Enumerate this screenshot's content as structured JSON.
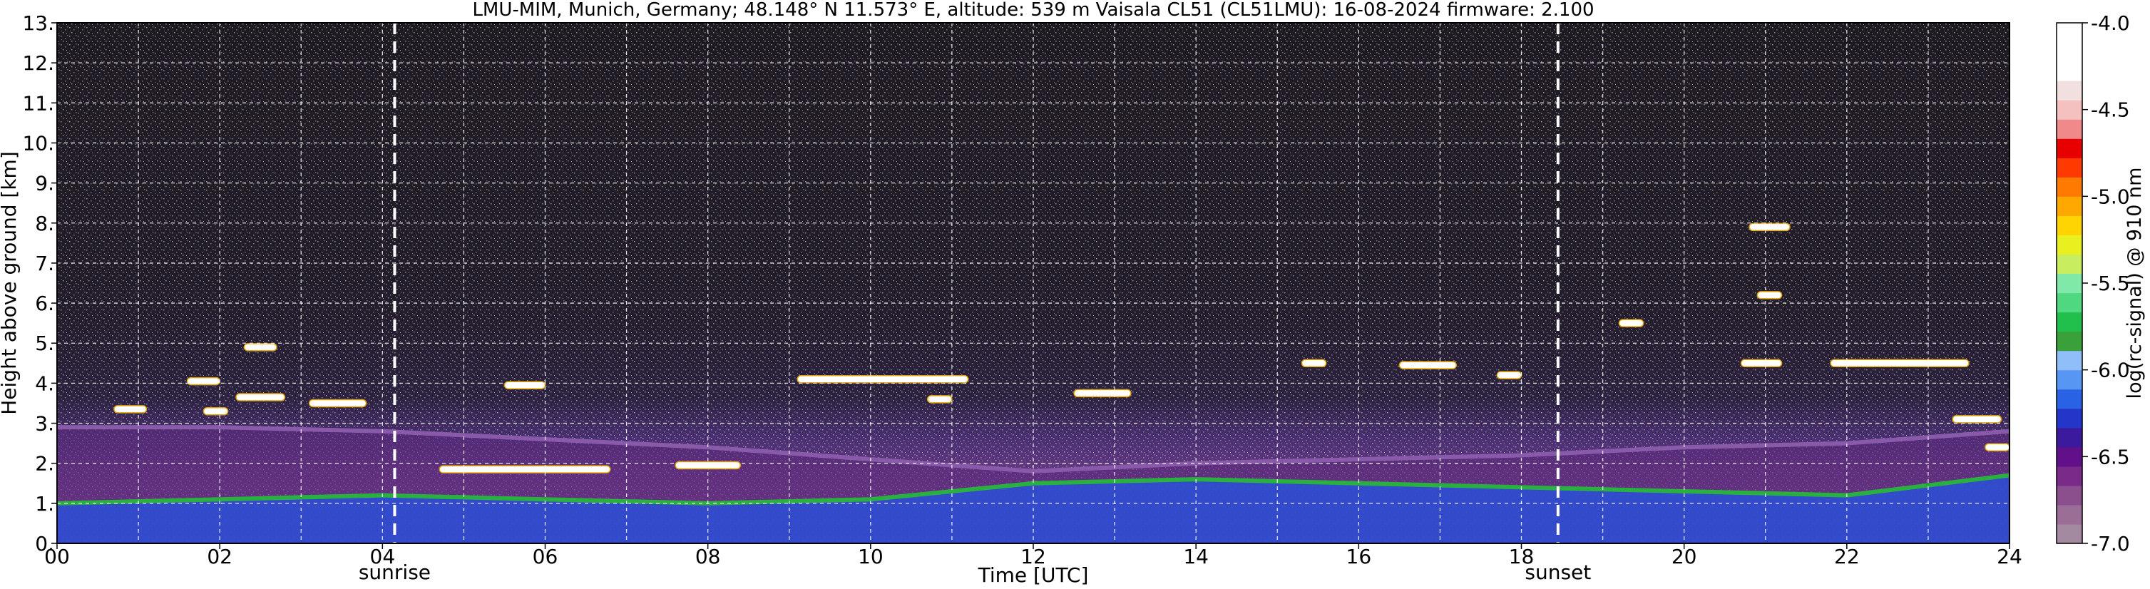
{
  "chart_data": {
    "type": "heatmap",
    "title": "LMU-MIM, Munich, Germany; 48.148° N 11.573° E, altitude: 539 m    Vaisala CL51 (CL51LMU): 16-08-2024    firmware: 2.100",
    "xlabel": "Time [UTC]",
    "ylabel": "Height above ground [km]",
    "xlim": [
      0,
      24
    ],
    "ylim": [
      0,
      13
    ],
    "xticks": [
      "00",
      "02",
      "04",
      "06",
      "08",
      "10",
      "12",
      "14",
      "16",
      "18",
      "20",
      "22",
      "24"
    ],
    "yticks": [
      "0.",
      "1.",
      "2.",
      "3.",
      "4.",
      "5.",
      "6.",
      "7.",
      "8.",
      "9.",
      "10.",
      "11.",
      "12.",
      "13."
    ],
    "grid": true,
    "markers": [
      {
        "label": "sunrise",
        "time": 4.15
      },
      {
        "label": "sunset",
        "time": 18.45
      }
    ],
    "colorbar": {
      "label": "log(rc-signal) @ 910 nm",
      "ticks": [
        "-4.0",
        "-4.5",
        "-5.0",
        "-5.5",
        "-6.0",
        "-6.5",
        "-7.0"
      ],
      "range": [
        -7.0,
        -4.0
      ],
      "colors": [
        "#a48aa0",
        "#9a6e96",
        "#8c4f8e",
        "#7a2a88",
        "#62108a",
        "#3c1a9e",
        "#2436c8",
        "#2a62e6",
        "#5896f4",
        "#90bef8",
        "#3aa03a",
        "#21c04c",
        "#50d880",
        "#80e8a8",
        "#c8ee60",
        "#e8f020",
        "#ffd400",
        "#ffa800",
        "#ff7a00",
        "#ff3a00",
        "#e80000",
        "#f08a8a",
        "#f4c0c0",
        "#f2e0e0",
        "#ffffff",
        "#ffffff",
        "#ffffff"
      ]
    },
    "features": [
      {
        "kind": "aerosol-layer-top",
        "time": [
          0,
          2,
          4,
          6,
          8,
          10,
          12,
          14,
          16,
          18,
          20,
          22,
          24
        ],
        "height_km": [
          2.9,
          2.9,
          2.8,
          2.6,
          2.4,
          2.1,
          1.8,
          2.0,
          2.1,
          2.2,
          2.4,
          2.5,
          2.8
        ]
      },
      {
        "kind": "boundary-layer-top",
        "time": [
          0,
          2,
          4,
          6,
          8,
          10,
          12,
          14,
          16,
          18,
          20,
          22,
          24
        ],
        "height_km": [
          1.0,
          1.1,
          1.2,
          1.1,
          1.0,
          1.1,
          1.5,
          1.6,
          1.5,
          1.4,
          1.3,
          1.2,
          1.7
        ]
      },
      {
        "kind": "cloud",
        "t_start": 0.7,
        "t_end": 1.1,
        "height_km": 3.35
      },
      {
        "kind": "cloud",
        "t_start": 1.8,
        "t_end": 2.1,
        "height_km": 3.3
      },
      {
        "kind": "cloud",
        "t_start": 2.2,
        "t_end": 2.8,
        "height_km": 3.65
      },
      {
        "kind": "cloud",
        "t_start": 3.1,
        "t_end": 3.8,
        "height_km": 3.5
      },
      {
        "kind": "cloud",
        "t_start": 2.3,
        "t_end": 2.7,
        "height_km": 4.9
      },
      {
        "kind": "cloud",
        "t_start": 1.6,
        "t_end": 2.0,
        "height_km": 4.05
      },
      {
        "kind": "cloud",
        "t_start": 5.5,
        "t_end": 6.0,
        "height_km": 3.95
      },
      {
        "kind": "cloud",
        "t_start": 4.7,
        "t_end": 6.8,
        "height_km": 1.85
      },
      {
        "kind": "cloud",
        "t_start": 7.6,
        "t_end": 8.4,
        "height_km": 1.95
      },
      {
        "kind": "cloud",
        "t_start": 9.1,
        "t_end": 11.2,
        "height_km": 4.1
      },
      {
        "kind": "cloud",
        "t_start": 10.7,
        "t_end": 11.0,
        "height_km": 3.6
      },
      {
        "kind": "cloud",
        "t_start": 12.5,
        "t_end": 13.2,
        "height_km": 3.75
      },
      {
        "kind": "cloud",
        "t_start": 15.3,
        "t_end": 15.6,
        "height_km": 4.5
      },
      {
        "kind": "cloud",
        "t_start": 16.5,
        "t_end": 17.2,
        "height_km": 4.45
      },
      {
        "kind": "cloud",
        "t_start": 17.7,
        "t_end": 18.0,
        "height_km": 4.2
      },
      {
        "kind": "cloud",
        "t_start": 19.2,
        "t_end": 19.5,
        "height_km": 5.5
      },
      {
        "kind": "cloud",
        "t_start": 20.8,
        "t_end": 21.3,
        "height_km": 7.9
      },
      {
        "kind": "cloud",
        "t_start": 20.9,
        "t_end": 21.2,
        "height_km": 6.2
      },
      {
        "kind": "cloud",
        "t_start": 20.7,
        "t_end": 21.2,
        "height_km": 4.5
      },
      {
        "kind": "cloud",
        "t_start": 21.8,
        "t_end": 23.5,
        "height_km": 4.5
      },
      {
        "kind": "cloud",
        "t_start": 23.3,
        "t_end": 23.9,
        "height_km": 3.1
      },
      {
        "kind": "cloud",
        "t_start": 23.7,
        "t_end": 24.0,
        "height_km": 2.4
      }
    ]
  }
}
